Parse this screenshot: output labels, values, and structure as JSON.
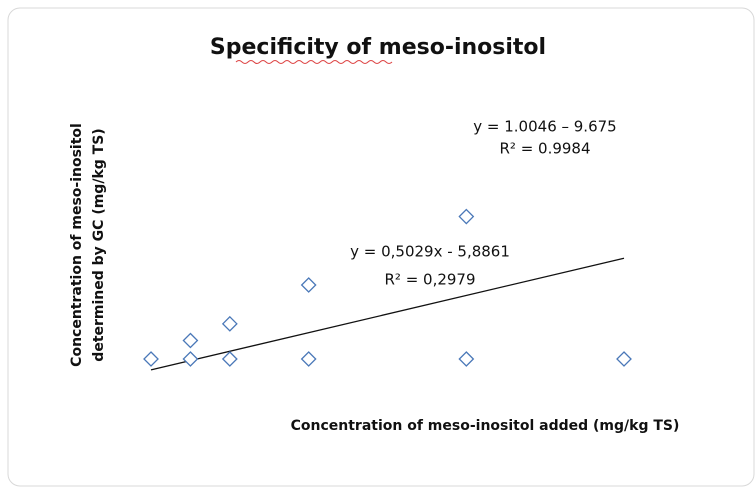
{
  "chart_data": {
    "type": "scatter",
    "title": "Specificity of meso-inositol",
    "xlabel": "Concentration of meso-inositol added (mg/kg TS)",
    "ylabel": [
      "Concentration of meso-inositol",
      "determined by GC (mg/kg TS)"
    ],
    "x": [
      0,
      10,
      10,
      20,
      20,
      40,
      40,
      80,
      80,
      120
    ],
    "values": [
      0,
      0,
      10,
      0,
      19,
      0,
      40,
      0,
      77,
      0
    ],
    "color": "#4a78b8",
    "xlim": [
      0,
      120
    ],
    "ylim": [
      -10,
      80
    ],
    "trendline": {
      "slope": 0.5029,
      "intercept": -5.8861,
      "label": "y = 0,5029x - 5,8861",
      "r2": 0.2979,
      "r2_label": "R² = 0,2979"
    },
    "annotations": [
      "y = 1.0046 – 9.675",
      "R² = 0.9984"
    ]
  }
}
